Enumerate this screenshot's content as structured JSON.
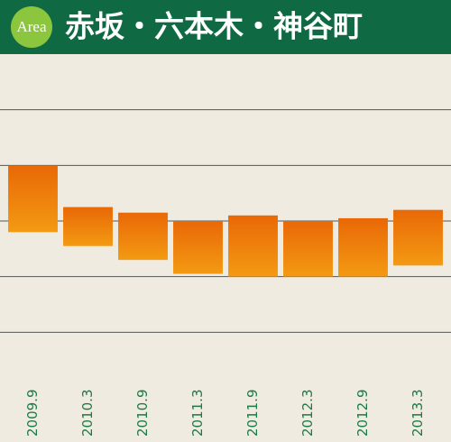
{
  "chart_data": {
    "type": "range-bar",
    "badge": "Area",
    "title": "赤坂・六本木・神谷町",
    "categories": [
      "2009.9",
      "2010.3",
      "2010.9",
      "2011.3",
      "2011.9",
      "2012.3",
      "2012.9",
      "2013.3"
    ],
    "values": [
      [
        2.8,
        4.0
      ],
      [
        2.55,
        3.25
      ],
      [
        2.3,
        3.15
      ],
      [
        2.05,
        3.0
      ],
      [
        2.0,
        3.1
      ],
      [
        2.0,
        3.0
      ],
      [
        2.0,
        3.05
      ],
      [
        2.2,
        3.2
      ]
    ],
    "colors": [
      "#e96807",
      "#f39a12"
    ],
    "ylim": [
      0,
      6
    ],
    "yticks": [
      1,
      2,
      3,
      4,
      5
    ],
    "grid": true
  }
}
